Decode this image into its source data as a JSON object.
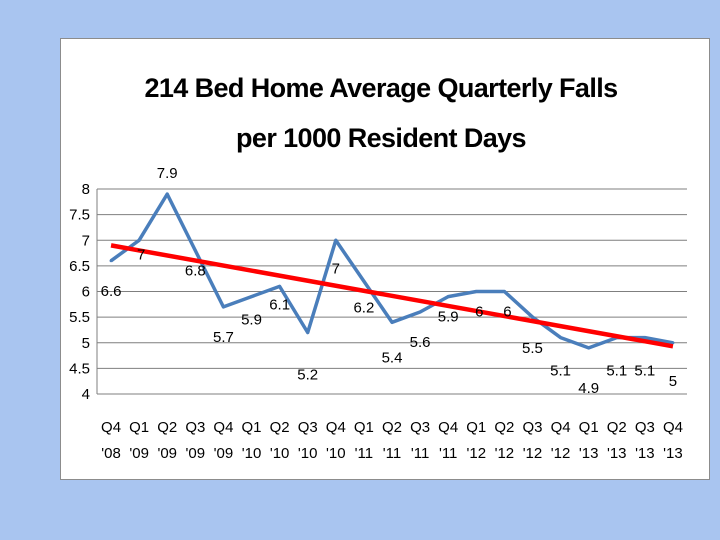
{
  "chart_data": {
    "type": "line",
    "title": [
      "214 Bed Home Average Quarterly Falls",
      "per 1000 Resident Days"
    ],
    "xlabel": "",
    "ylabel": "",
    "categories": [
      [
        "Q4",
        "'08"
      ],
      [
        "Q1",
        "'09"
      ],
      [
        "Q2",
        "'09"
      ],
      [
        "Q3",
        "'09"
      ],
      [
        "Q4",
        "'09"
      ],
      [
        "Q1",
        "'10"
      ],
      [
        "Q2",
        "'10"
      ],
      [
        "Q3",
        "'10"
      ],
      [
        "Q4",
        "'10"
      ],
      [
        "Q1",
        "'11"
      ],
      [
        "Q2",
        "'11"
      ],
      [
        "Q3",
        "'11"
      ],
      [
        "Q4",
        "'11"
      ],
      [
        "Q1",
        "'12"
      ],
      [
        "Q2",
        "'12"
      ],
      [
        "Q3",
        "'12"
      ],
      [
        "Q4",
        "'12"
      ],
      [
        "Q1",
        "'13"
      ],
      [
        "Q2",
        "'13"
      ],
      [
        "Q3",
        "'13"
      ],
      [
        "Q4",
        "'13"
      ]
    ],
    "series": [
      {
        "values": [
          6.6,
          7,
          7.9,
          6.8,
          5.7,
          5.9,
          6.1,
          5.2,
          7,
          6.2,
          5.4,
          5.6,
          5.9,
          6,
          6,
          5.5,
          5.1,
          4.9,
          5.1,
          5.1,
          5
        ],
        "data_labels": [
          "6.6",
          "7",
          "7.9",
          "6.8",
          "5.7",
          "5.9",
          "6.1",
          "5.2",
          "7",
          "6.2",
          "5.4",
          "5.6",
          "5.9",
          "6",
          "6",
          "5.5",
          "5.1",
          "4.9",
          "5.1",
          "5.1",
          "5"
        ],
        "color": "#4a7ebb"
      }
    ],
    "trendline": {
      "type": "linear",
      "color": "#ff0000",
      "start": 6.9,
      "end": 4.93
    },
    "ylim": [
      4,
      8
    ],
    "yticks": [
      "4",
      "4.5",
      "5",
      "5.5",
      "6",
      "6.5",
      "7",
      "7.5",
      "8"
    ],
    "grid": true,
    "legend": "none"
  },
  "colors": {
    "background": "#a9c5f0",
    "series": "#4a7ebb",
    "trendline": "#ff0000",
    "grid": "#7f7f7f"
  }
}
